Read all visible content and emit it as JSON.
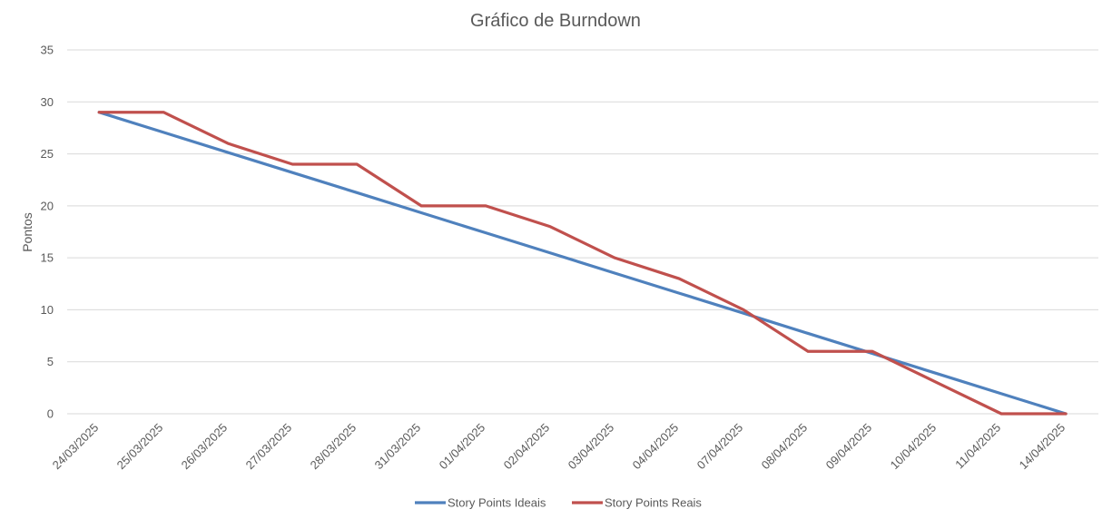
{
  "chart_data": {
    "type": "line",
    "title": "Gráfico de Burndown",
    "xlabel": "",
    "ylabel": "Pontos",
    "ylim": [
      0,
      35
    ],
    "yticks": [
      0,
      5,
      10,
      15,
      20,
      25,
      30,
      35
    ],
    "grid": true,
    "legend_position": "bottom",
    "categories": [
      "24/03/2025",
      "25/03/2025",
      "26/03/2025",
      "27/03/2025",
      "28/03/2025",
      "31/03/2025",
      "01/04/2025",
      "02/04/2025",
      "03/04/2025",
      "04/04/2025",
      "07/04/2025",
      "08/04/2025",
      "09/04/2025",
      "10/04/2025",
      "11/04/2025",
      "14/04/2025"
    ],
    "series": [
      {
        "name": "Story Points Ideais",
        "color": "#4f81bd",
        "values": [
          29,
          27.07,
          25.13,
          23.2,
          21.27,
          19.33,
          17.4,
          15.47,
          13.53,
          11.6,
          9.67,
          7.73,
          5.8,
          3.87,
          1.93,
          0
        ]
      },
      {
        "name": "Story Points Reais",
        "color": "#c0504d",
        "values": [
          29,
          29,
          26,
          24,
          24,
          20,
          20,
          18,
          15,
          13,
          10,
          6,
          6,
          3,
          0,
          0
        ]
      }
    ]
  }
}
